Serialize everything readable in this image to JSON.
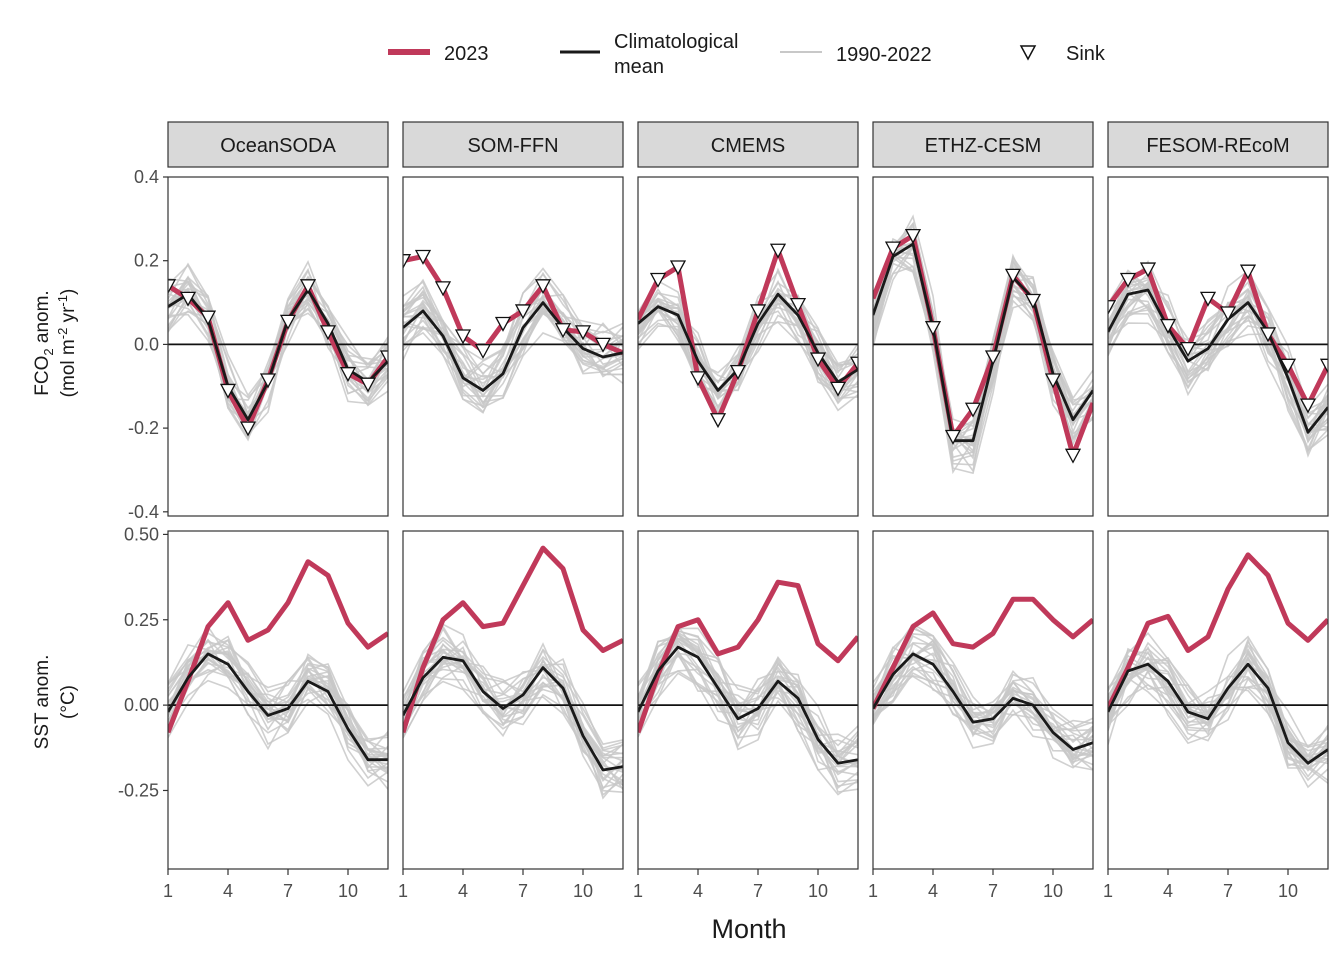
{
  "legend": {
    "items": [
      {
        "key": "2023",
        "label": "2023",
        "color": "#c0395a"
      },
      {
        "key": "clim",
        "label_line1": "Climatological",
        "label_line2": "mean",
        "color": "#1a1a1a"
      },
      {
        "key": "hist",
        "label": "1990-2022",
        "color": "#c8c8c8"
      },
      {
        "key": "sink",
        "label": "Sink"
      }
    ]
  },
  "x_axis_title": "Month",
  "chart_data": {
    "type": "line",
    "facets": [
      "OceanSODA",
      "SOM-FFN",
      "CMEMS",
      "ETHZ-CESM",
      "FESOM-REcoM"
    ],
    "x_ticks": [
      1,
      4,
      7,
      10
    ],
    "x_tick_labels": [
      "1",
      "4",
      "7",
      "10"
    ],
    "xlim": [
      1,
      12
    ],
    "rows": [
      {
        "key": "fco2",
        "ylabel_main": "FCO",
        "ylabel_sub": "2",
        "ylabel_rest": " anom.",
        "ylabel_line2_a": "(mol m",
        "ylabel_line2_sup1": "-2",
        "ylabel_line2_b": " yr",
        "ylabel_line2_sup2": "-1",
        "ylabel_line2_c": ")",
        "ylim": [
          -0.41,
          0.4
        ],
        "y_ticks": [
          0.4,
          0.2,
          0.0,
          -0.2,
          -0.4
        ],
        "y_tick_labels": [
          "0.4",
          "0.2",
          "0.0",
          "-0.2",
          "-0.4"
        ],
        "series": [
          {
            "clim": [
              0.09,
              0.12,
              0.06,
              -0.1,
              -0.18,
              -0.09,
              0.06,
              0.13,
              0.05,
              -0.06,
              -0.09,
              -0.04
            ],
            "y2023": [
              0.14,
              0.11,
              0.065,
              -0.11,
              -0.2,
              -0.085,
              0.055,
              0.14,
              0.03,
              -0.07,
              -0.095,
              -0.03
            ],
            "sink": [
              1,
              1,
              1,
              1,
              1,
              1,
              1,
              1,
              1,
              1,
              1,
              1
            ]
          },
          {
            "clim": [
              0.04,
              0.08,
              0.02,
              -0.08,
              -0.11,
              -0.07,
              0.04,
              0.1,
              0.04,
              -0.01,
              -0.03,
              -0.02
            ],
            "y2023": [
              0.2,
              0.21,
              0.135,
              0.02,
              -0.015,
              0.05,
              0.08,
              0.14,
              0.035,
              0.03,
              0.0,
              -0.02
            ],
            "sink": [
              1,
              1,
              1,
              1,
              1,
              1,
              1,
              1,
              1,
              1,
              1,
              0
            ]
          },
          {
            "clim": [
              0.05,
              0.09,
              0.07,
              -0.04,
              -0.11,
              -0.06,
              0.05,
              0.12,
              0.07,
              -0.02,
              -0.09,
              -0.06
            ],
            "y2023": [
              0.06,
              0.155,
              0.185,
              -0.08,
              -0.18,
              -0.065,
              0.08,
              0.225,
              0.095,
              -0.035,
              -0.105,
              -0.045
            ],
            "sink": [
              0,
              1,
              1,
              1,
              1,
              1,
              1,
              1,
              1,
              1,
              1,
              1
            ]
          },
          {
            "clim": [
              0.07,
              0.21,
              0.24,
              0.04,
              -0.23,
              -0.23,
              -0.04,
              0.16,
              0.11,
              -0.07,
              -0.18,
              -0.11
            ],
            "y2023": [
              0.11,
              0.23,
              0.26,
              0.04,
              -0.22,
              -0.155,
              -0.03,
              0.165,
              0.105,
              -0.085,
              -0.265,
              -0.14
            ],
            "sink": [
              0,
              1,
              1,
              1,
              1,
              1,
              1,
              1,
              1,
              1,
              1,
              0
            ]
          },
          {
            "clim": [
              0.03,
              0.12,
              0.13,
              0.04,
              -0.04,
              -0.01,
              0.06,
              0.1,
              0.03,
              -0.08,
              -0.21,
              -0.15
            ],
            "y2023": [
              0.09,
              0.155,
              0.18,
              0.045,
              -0.01,
              0.11,
              0.075,
              0.175,
              0.025,
              -0.05,
              -0.145,
              -0.05
            ],
            "sink": [
              1,
              1,
              1,
              1,
              1,
              1,
              1,
              1,
              1,
              1,
              1,
              1
            ]
          }
        ]
      },
      {
        "key": "sst",
        "ylabel_main": "SST anom.",
        "ylabel_line2": "(°C)",
        "ylim": [
          -0.48,
          0.51
        ],
        "y_ticks": [
          0.5,
          0.25,
          0.0,
          -0.25
        ],
        "y_tick_labels": [
          "0.50",
          "0.25",
          "0.00",
          "-0.25"
        ],
        "series": [
          {
            "clim": [
              -0.02,
              0.08,
              0.15,
              0.12,
              0.04,
              -0.03,
              -0.01,
              0.07,
              0.04,
              -0.07,
              -0.16,
              -0.16
            ],
            "y2023": [
              -0.08,
              0.07,
              0.23,
              0.3,
              0.19,
              0.22,
              0.3,
              0.42,
              0.38,
              0.24,
              0.17,
              0.21
            ]
          },
          {
            "clim": [
              -0.03,
              0.08,
              0.14,
              0.13,
              0.04,
              -0.01,
              0.03,
              0.11,
              0.05,
              -0.09,
              -0.19,
              -0.18
            ],
            "y2023": [
              -0.08,
              0.11,
              0.25,
              0.3,
              0.23,
              0.24,
              0.35,
              0.46,
              0.4,
              0.22,
              0.16,
              0.19
            ]
          },
          {
            "clim": [
              -0.02,
              0.1,
              0.17,
              0.14,
              0.05,
              -0.04,
              -0.01,
              0.07,
              0.02,
              -0.1,
              -0.17,
              -0.16
            ],
            "y2023": [
              -0.08,
              0.09,
              0.23,
              0.25,
              0.15,
              0.17,
              0.25,
              0.36,
              0.35,
              0.18,
              0.13,
              0.2
            ]
          },
          {
            "clim": [
              -0.01,
              0.09,
              0.15,
              0.12,
              0.04,
              -0.05,
              -0.04,
              0.02,
              0.0,
              -0.08,
              -0.13,
              -0.11
            ],
            "y2023": [
              -0.01,
              0.11,
              0.23,
              0.27,
              0.18,
              0.17,
              0.21,
              0.31,
              0.31,
              0.25,
              0.2,
              0.25
            ]
          },
          {
            "clim": [
              -0.02,
              0.1,
              0.12,
              0.07,
              -0.02,
              -0.04,
              0.05,
              0.12,
              0.05,
              -0.11,
              -0.17,
              -0.13
            ],
            "y2023": [
              -0.01,
              0.11,
              0.24,
              0.26,
              0.16,
              0.2,
              0.34,
              0.44,
              0.38,
              0.24,
              0.19,
              0.25
            ]
          }
        ]
      }
    ]
  }
}
